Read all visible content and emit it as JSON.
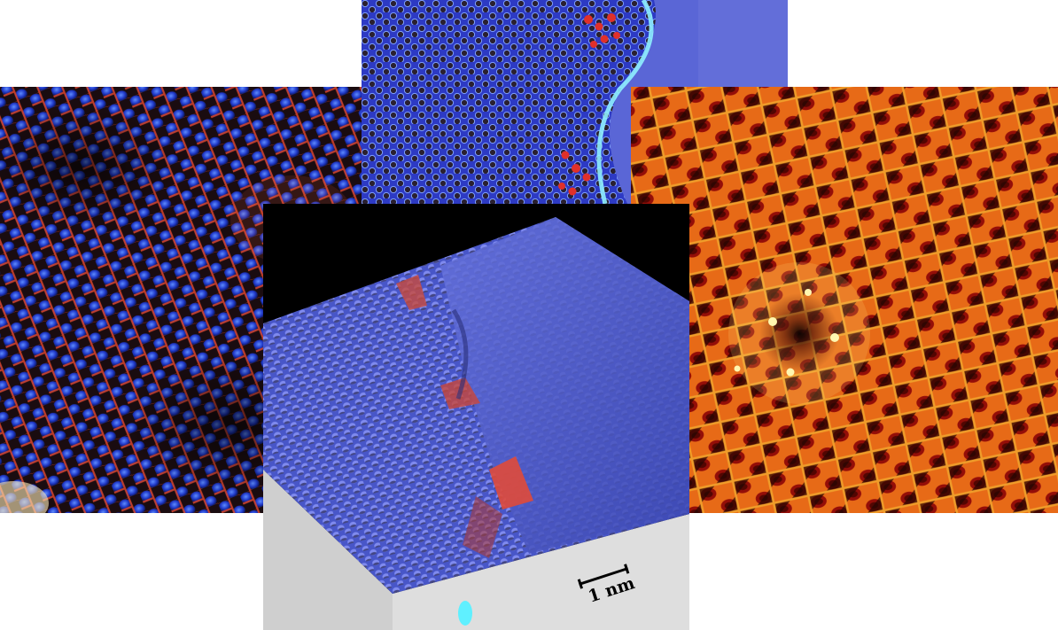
{
  "panels": {
    "left": {
      "description_icon": "hexagonal-lattice-blue-red"
    },
    "top": {
      "description_icon": "hexagonal-lattice-blue-edge"
    },
    "right": {
      "description_icon": "heat-lattice-defect"
    },
    "center": {
      "description_icon": "3d-surface-topography"
    }
  },
  "scalebar": {
    "label": "1 nm"
  },
  "colors": {
    "lattice_blue": "#2a3fd6",
    "lattice_red": "#e0402a",
    "heat_yellow": "#ffd23a",
    "heat_red": "#b8140c",
    "surface_blue": "#5462d8",
    "base_gray": "#d8d8d8"
  }
}
